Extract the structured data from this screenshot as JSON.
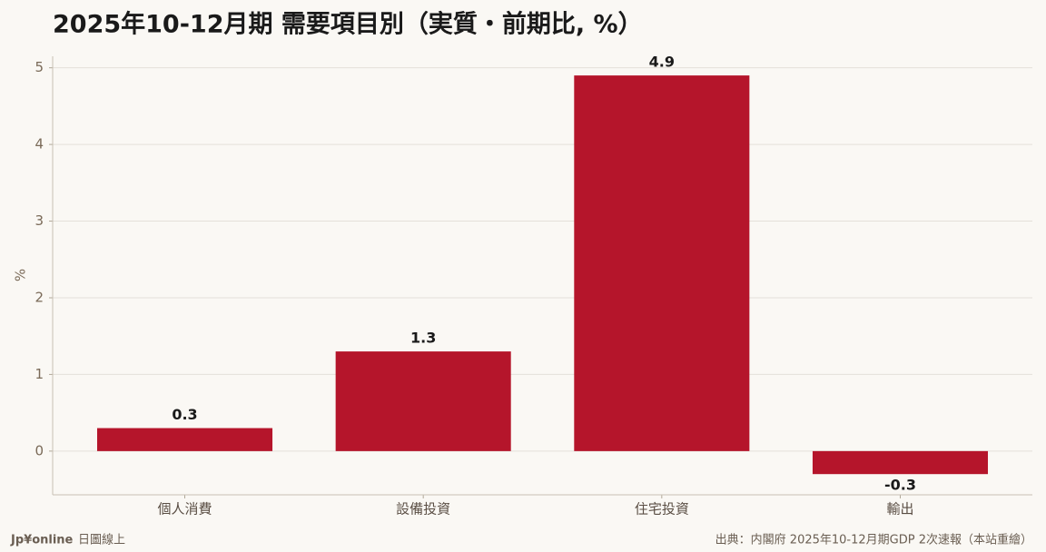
{
  "chart_data": {
    "type": "bar",
    "title": "2025年10-12月期 需要項目別（実質・前期比, %）",
    "y_label": "%",
    "categories": [
      "個人消費",
      "設備投資",
      "住宅投資",
      "輸出"
    ],
    "values": [
      0.3,
      1.3,
      4.9,
      -0.3
    ],
    "color": "#b5152b",
    "ylim": [
      -0.57,
      5.15
    ],
    "yticks": [
      0,
      1,
      2,
      3,
      4,
      5
    ],
    "grid": true,
    "brand": "Jp¥online",
    "brand_sub": "日圖線上",
    "source": "出典：内閣府 2025年10-12月期GDP 2次速報（本站重繪）"
  }
}
